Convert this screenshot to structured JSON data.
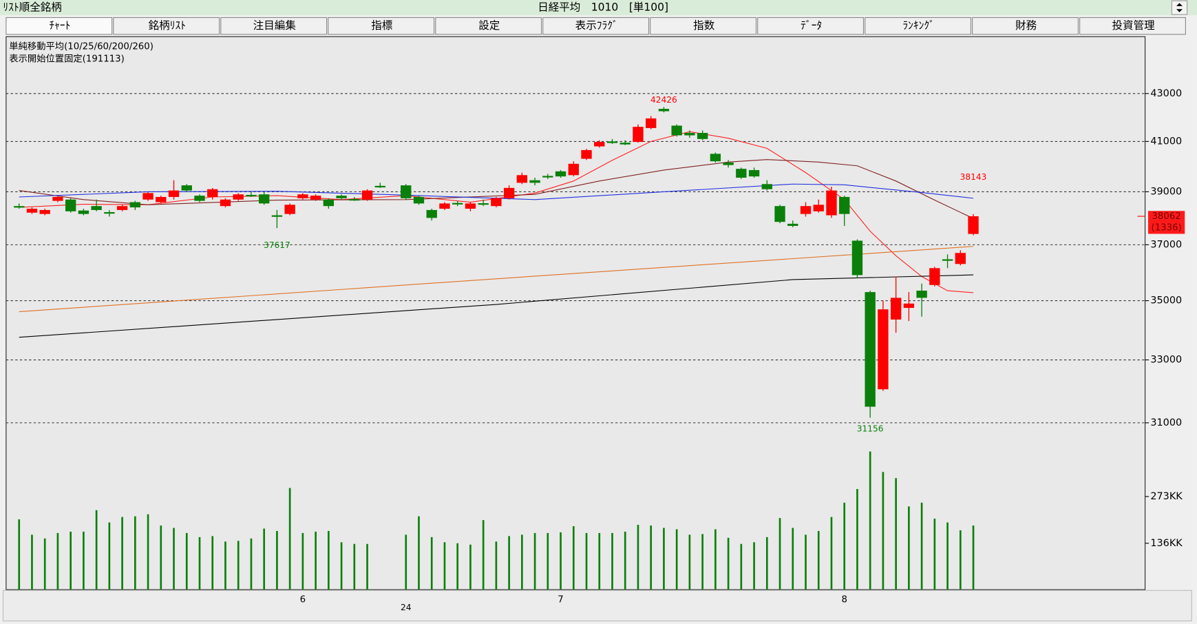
{
  "header": {
    "left": "ﾘｽﾄ順全銘柄",
    "center": "日経平均　1010　[単100]"
  },
  "tabs": [
    "ﾁｬｰﾄ",
    "銘柄ﾘｽﾄ",
    "注目編集",
    "指標",
    "設定",
    "表示ﾌﾗｸﾞ",
    "指数",
    "ﾃﾞｰﾀ",
    "ﾗﾝｷﾝｸﾞ",
    "財務",
    "投資管理"
  ],
  "selected_tab": 0,
  "chart_data": [
    {
      "type": "candlestick",
      "info_lines": [
        "単純移動平均(10/25/60/200/260)",
        "表示開始位置固定(191113)"
      ],
      "log": true,
      "grid": true,
      "up_color": "#ff0000",
      "down_color": "#0a800a",
      "ylim": [
        30500,
        45500
      ],
      "yticks": [
        31000,
        33000,
        35000,
        37000,
        39000,
        41000,
        43000
      ],
      "last_change_label": "(1336)",
      "open": [
        38450,
        38200,
        38150,
        38650,
        38700,
        38280,
        38450,
        38220,
        38300,
        38600,
        38700,
        38600,
        38800,
        39250,
        38850,
        38800,
        38450,
        38700,
        38880,
        38900,
        38100,
        38150,
        38750,
        38700,
        38700,
        38850,
        38720,
        38700,
        39230,
        null,
        39250,
        38800,
        38300,
        38350,
        38570,
        38350,
        38560,
        38450,
        38750,
        39350,
        39450,
        39620,
        39800,
        39650,
        40300,
        40800,
        41000,
        40950,
        40980,
        41550,
        42350,
        41650,
        41350,
        41350,
        40500,
        40150,
        39900,
        39850,
        39300,
        38450,
        37780,
        38150,
        38250,
        38100,
        38800,
        37150,
        35300,
        32050,
        34350,
        34750,
        35350,
        35550,
        36470,
        36300,
        37400
      ],
      "high": [
        38550,
        38400,
        38350,
        38850,
        38750,
        38350,
        38700,
        38300,
        38500,
        38650,
        39000,
        38850,
        39450,
        39300,
        38900,
        39150,
        38750,
        38950,
        39000,
        39000,
        38300,
        38550,
        38950,
        38900,
        38750,
        38900,
        38800,
        39100,
        39350,
        null,
        39300,
        38850,
        38350,
        38600,
        38650,
        38600,
        38700,
        38800,
        39250,
        39750,
        39550,
        39700,
        39850,
        40200,
        40700,
        41050,
        41100,
        41050,
        41700,
        42050,
        42426,
        41700,
        41450,
        41450,
        40550,
        40250,
        39950,
        39950,
        39450,
        38500,
        37900,
        38600,
        38700,
        39200,
        38850,
        37200,
        35350,
        35000,
        35850,
        35300,
        35600,
        36200,
        36650,
        36800,
        38143
      ],
      "low": [
        38350,
        38150,
        38100,
        38600,
        38200,
        38100,
        38250,
        38050,
        38250,
        38300,
        38650,
        38550,
        38700,
        39000,
        38600,
        38700,
        38400,
        38650,
        38800,
        38500,
        37617,
        38100,
        38700,
        38650,
        38350,
        38700,
        38650,
        38650,
        39150,
        null,
        38700,
        38500,
        37900,
        38300,
        38450,
        38250,
        38450,
        38400,
        38700,
        39300,
        39250,
        39500,
        39550,
        39600,
        40250,
        40750,
        40900,
        40850,
        40950,
        41500,
        42200,
        41200,
        41150,
        41050,
        40150,
        39950,
        39500,
        39550,
        39050,
        37800,
        37650,
        38050,
        38200,
        38000,
        37700,
        35800,
        31156,
        32000,
        33900,
        34300,
        34450,
        35500,
        36150,
        36250,
        37350
      ],
      "close": [
        38430,
        38350,
        38300,
        38800,
        38250,
        38150,
        38300,
        38200,
        38450,
        38400,
        38950,
        38800,
        39050,
        39050,
        38650,
        39100,
        38700,
        38900,
        38870,
        38550,
        38080,
        38500,
        38900,
        38850,
        38450,
        38750,
        38700,
        39050,
        39220,
        null,
        38750,
        38550,
        38000,
        38550,
        38550,
        38550,
        38550,
        38750,
        39150,
        39650,
        39350,
        39600,
        39600,
        40100,
        40650,
        40980,
        40990,
        40880,
        41600,
        41950,
        42250,
        41250,
        41250,
        41100,
        40200,
        40050,
        39550,
        39600,
        39100,
        37850,
        37700,
        38450,
        38500,
        39050,
        38150,
        35900,
        31500,
        34700,
        35100,
        34900,
        35100,
        36150,
        36450,
        36700,
        38062
      ],
      "series": [
        {
          "color": "#ff2020",
          "x": [
            0,
            5,
            10,
            15,
            20,
            25,
            30,
            35,
            40,
            43,
            46,
            49,
            52,
            55,
            58,
            61,
            64,
            66,
            68,
            70,
            72,
            74
          ],
          "values": [
            38400,
            38520,
            38500,
            38800,
            38850,
            38700,
            38850,
            38600,
            38950,
            39420,
            40240,
            41000,
            41400,
            41130,
            40720,
            39750,
            38700,
            37500,
            36600,
            35850,
            35350,
            35280
          ]
        },
        {
          "color": "#802020",
          "x": [
            0,
            5,
            10,
            20,
            30,
            40,
            45,
            50,
            55,
            58,
            62,
            65,
            68,
            71,
            74
          ],
          "values": [
            39050,
            38700,
            38500,
            38680,
            38700,
            38900,
            39420,
            39850,
            40170,
            40270,
            40170,
            40020,
            39420,
            38680,
            37980
          ]
        },
        {
          "color": "#2030e0",
          "x": [
            0,
            10,
            20,
            30,
            40,
            50,
            60,
            64,
            70,
            74
          ],
          "values": [
            38800,
            39000,
            39020,
            38870,
            38700,
            39000,
            39300,
            39270,
            38970,
            38750
          ]
        },
        {
          "color": "#e07020",
          "x": [
            0,
            37,
            74
          ],
          "values": [
            34620,
            35770,
            36940
          ]
        },
        {
          "color": "#000000",
          "x": [
            0,
            37,
            60,
            74
          ],
          "values": [
            33750,
            34870,
            35740,
            35910
          ]
        }
      ]
    },
    {
      "type": "bar",
      "color": "#0a800a",
      "ylim": [
        0,
        430
      ],
      "yticks": [
        {
          "value": 136,
          "label": "136KK"
        },
        {
          "value": 273,
          "label": "273KK"
        }
      ],
      "values": [
        206,
        161,
        150,
        166,
        170,
        170,
        233,
        197,
        213,
        215,
        221,
        188,
        181,
        166,
        154,
        157,
        141,
        143,
        150,
        179,
        172,
        298,
        166,
        170,
        172,
        139,
        134,
        134,
        null,
        null,
        161,
        215,
        154,
        139,
        136,
        132,
        204,
        141,
        157,
        161,
        166,
        166,
        168,
        186,
        166,
        166,
        166,
        170,
        190,
        188,
        181,
        177,
        161,
        163,
        177,
        152,
        134,
        139,
        154,
        210,
        181,
        161,
        172,
        213,
        255,
        295,
        405,
        345,
        327,
        244,
        255,
        208,
        197,
        174,
        188
      ],
      "categories": [
        null,
        null,
        null,
        null,
        null,
        null,
        null,
        null,
        null,
        null,
        null,
        null,
        null,
        null,
        null,
        null,
        null,
        null,
        null,
        null,
        null,
        null,
        "6",
        null,
        null,
        null,
        null,
        null,
        null,
        null,
        null,
        null,
        null,
        null,
        null,
        null,
        null,
        null,
        null,
        null,
        null,
        null,
        "7",
        null,
        null,
        null,
        null,
        null,
        null,
        null,
        null,
        null,
        null,
        null,
        null,
        null,
        null,
        null,
        null,
        null,
        null,
        null,
        null,
        null,
        "8",
        null,
        null,
        null,
        null,
        null,
        null,
        null,
        null,
        null,
        null
      ],
      "sub_categories": [
        null,
        null,
        null,
        null,
        null,
        null,
        null,
        null,
        null,
        null,
        null,
        null,
        null,
        null,
        null,
        null,
        null,
        null,
        null,
        null,
        null,
        null,
        null,
        null,
        null,
        null,
        null,
        null,
        null,
        null,
        "24",
        null,
        null,
        null,
        null,
        null,
        null,
        null,
        null,
        null,
        null,
        null,
        null,
        null,
        null,
        null,
        null,
        null,
        null,
        null,
        null,
        null,
        null,
        null,
        null,
        null,
        null,
        null,
        null,
        null,
        null,
        null,
        null,
        null,
        null,
        null,
        null,
        null,
        null,
        null,
        null,
        null,
        null,
        null,
        null
      ]
    }
  ]
}
